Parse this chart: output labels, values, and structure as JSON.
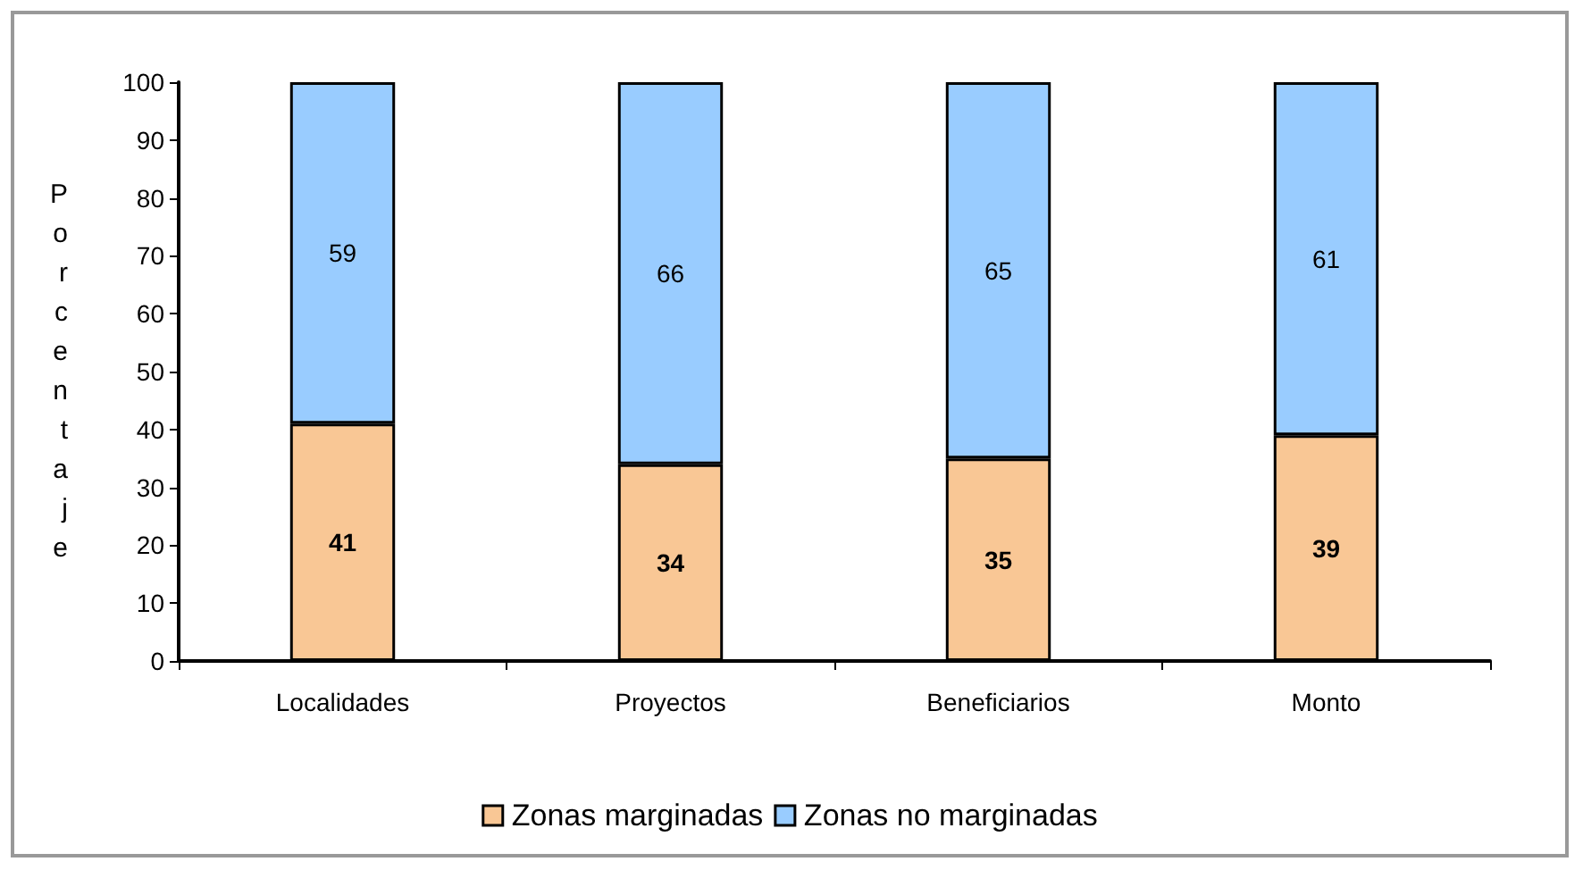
{
  "chart_data": {
    "type": "bar",
    "stacked": true,
    "ylabel": "Porcentaje",
    "categories": [
      "Localidades",
      "Proyectos",
      "Beneficiarios",
      "Monto"
    ],
    "series": [
      {
        "name": "Zonas marginadas",
        "color": "#f9c795",
        "values": [
          41,
          34,
          35,
          39
        ]
      },
      {
        "name": "Zonas no marginadas",
        "color": "#99ccff",
        "values": [
          59,
          66,
          65,
          61
        ]
      }
    ],
    "data_labels": true,
    "ylim": [
      0,
      100
    ],
    "yticks": [
      0,
      10,
      20,
      30,
      40,
      50,
      60,
      70,
      80,
      90,
      100
    ],
    "grid": false,
    "legend": "bottom"
  }
}
